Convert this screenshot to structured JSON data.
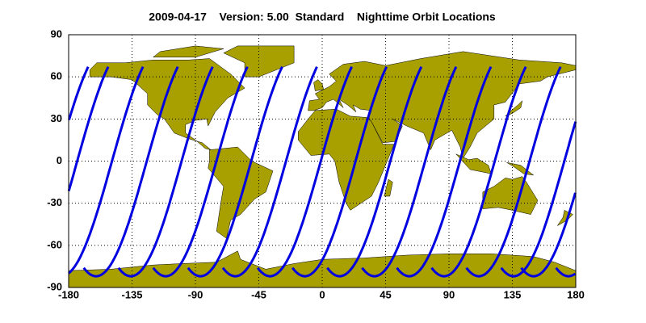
{
  "chart_data": {
    "type": "map",
    "title": "2009-04-17    Version: 5.00  Standard    Nighttime Orbit Locations",
    "xlim": [
      -180,
      180
    ],
    "ylim": [
      -90,
      90
    ],
    "xticks": [
      -180,
      -135,
      -90,
      -45,
      0,
      45,
      90,
      135,
      180
    ],
    "yticks": [
      -90,
      -60,
      -30,
      0,
      30,
      60,
      90
    ],
    "grid": true,
    "land_color": "#a8a000",
    "series": [
      {
        "color": "#0000e0",
        "values": [
          -173.9,
          -149.2,
          -124.5,
          -99.8,
          -75.1,
          -50.4,
          -25.7,
          -1,
          23.7,
          48.4,
          73.1,
          97.8,
          122.5,
          147.2,
          171.9
        ]
      }
    ]
  }
}
